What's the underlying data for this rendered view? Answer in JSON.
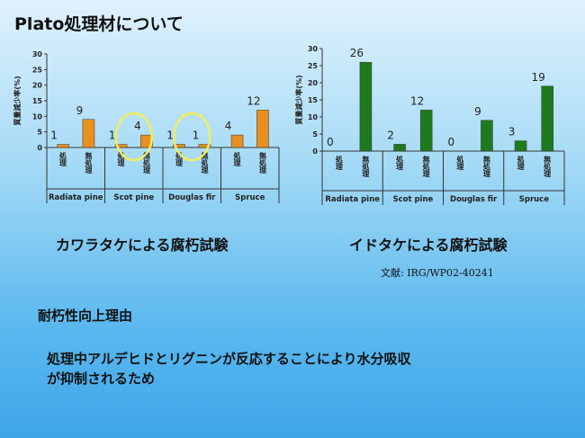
{
  "title": "Plato処理材について",
  "captions": {
    "left": "カワラタケによる腐朽試験",
    "right": "イドタケによる腐朽試験"
  },
  "reference": "文献: IRG/WP02-40241",
  "reason_heading": "耐朽性向上理由",
  "reason_lines": [
    "処理中アルデヒドとリグニンが反応することにより水分吸収",
    "が抑制されるため"
  ],
  "chart_data": [
    {
      "type": "bar",
      "ylabel": "質量減少率(%)",
      "ylim": [
        0,
        30
      ],
      "yticks": [
        0,
        5,
        10,
        15,
        20,
        25,
        30
      ],
      "groups": [
        "Radiata pine",
        "Scot pine",
        "Douglas fir",
        "Spruce"
      ],
      "bar_labels": [
        "処理",
        "無処理"
      ],
      "values": [
        [
          1,
          9
        ],
        [
          1,
          4
        ],
        [
          1,
          1
        ],
        [
          4,
          12
        ]
      ],
      "value_labels": [
        [
          "1",
          "9"
        ],
        [
          "1",
          "4"
        ],
        [
          "1",
          "1"
        ],
        [
          "4",
          "12"
        ]
      ],
      "bar_color": "#e8901e",
      "highlight_color": "#f2ee5a",
      "highlight_groups": [
        1,
        2
      ]
    },
    {
      "type": "bar",
      "ylabel": "質量減少率(%)",
      "ylim": [
        0,
        30
      ],
      "yticks": [
        0,
        5,
        10,
        15,
        20,
        25,
        30
      ],
      "groups": [
        "Radiata pine",
        "Scot pine",
        "Douglas fir",
        "Spruce"
      ],
      "bar_labels": [
        "処理",
        "無処理"
      ],
      "values": [
        [
          0,
          26
        ],
        [
          2,
          12
        ],
        [
          0,
          9
        ],
        [
          3,
          19
        ]
      ],
      "value_labels": [
        [
          "0",
          "26"
        ],
        [
          "2",
          "12"
        ],
        [
          "0",
          "9"
        ],
        [
          "3",
          "19"
        ]
      ],
      "bar_color": "#1f7a1f",
      "highlight_color": "",
      "highlight_groups": []
    }
  ]
}
